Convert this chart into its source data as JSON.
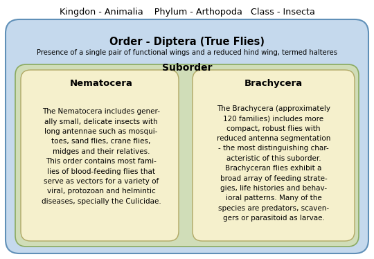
{
  "title_top": "Kingdon - Animalia    Phylum - Arthopoda   Class - Insecta",
  "order_title": "Order - Diptera (True Flies)",
  "order_subtitle": "Presence of a single pair of functional wings and a reduced hind wing, termed halteres",
  "suborder_label": "Suborder",
  "nematocera_title": "Nematocera",
  "nematocera_text": "The Nematocera includes gener-\nally small, delicate insects with\nlong antennae such as mosqui-\ntoes, sand flies, crane flies,\nmidges and their relatives.\nThis order contains most fami-\nlies of blood-feeding flies that\nserve as vectors for a variety of\nviral, protozoan and helmintic\ndiseases, specially the Culicidae.",
  "brachycera_title": "Brachycera",
  "brachycera_text": "The Brachycera (approximately\n120 families) includes more\ncompact, robust flies with\nreduced antenna segmentation\n- the most distinguishing char-\nacteristic of this suborder.\nBrachyceran flies exhibit a\nbroad array of feeding strate-\ngies, life histories and behav-\nioral patterns. Many of the\nspecies are predators, scaven-\ngers or parasitoid as larvae.",
  "bg_color": "#ffffff",
  "outer_box_color": "#c5d9ed",
  "middle_box_color": "#d0ddb8",
  "inner_box_color": "#f5f0cc",
  "outer_box_edge": "#6090b8",
  "middle_box_edge": "#8aaa60",
  "inner_box_edge": "#b0a864"
}
